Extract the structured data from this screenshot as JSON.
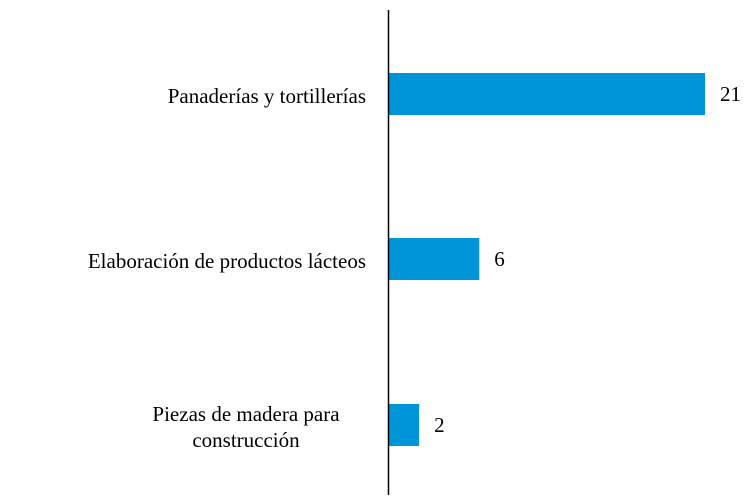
{
  "chart_data": {
    "type": "bar",
    "orientation": "horizontal",
    "categories": [
      "Panaderías y tortillerías",
      "Elaboración de productos lácteos",
      "Piezas de madera para construcción"
    ],
    "values": [
      21,
      6,
      2
    ],
    "color": "#0095d9"
  }
}
